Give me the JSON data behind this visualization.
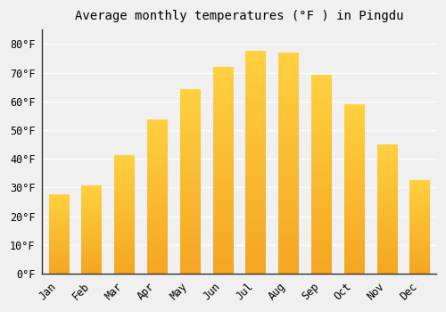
{
  "title": "Average monthly temperatures (°F ) in Pingdu",
  "months": [
    "Jan",
    "Feb",
    "Mar",
    "Apr",
    "May",
    "Jun",
    "Jul",
    "Aug",
    "Sep",
    "Oct",
    "Nov",
    "Dec"
  ],
  "values": [
    27.5,
    30.5,
    41.0,
    53.5,
    64.0,
    72.0,
    77.5,
    77.0,
    69.0,
    59.0,
    45.0,
    32.5
  ],
  "bar_color_bottom": "#F5A623",
  "bar_color_top": "#FFD040",
  "background_color": "#F0F0F0",
  "grid_color": "#FFFFFF",
  "title_fontsize": 10,
  "tick_label_fontsize": 8.5,
  "ylim": [
    0,
    85
  ],
  "yticks": [
    0,
    10,
    20,
    30,
    40,
    50,
    60,
    70,
    80
  ],
  "ytick_labels": [
    "0°F",
    "10°F",
    "20°F",
    "30°F",
    "40°F",
    "50°F",
    "60°F",
    "70°F",
    "80°F"
  ]
}
